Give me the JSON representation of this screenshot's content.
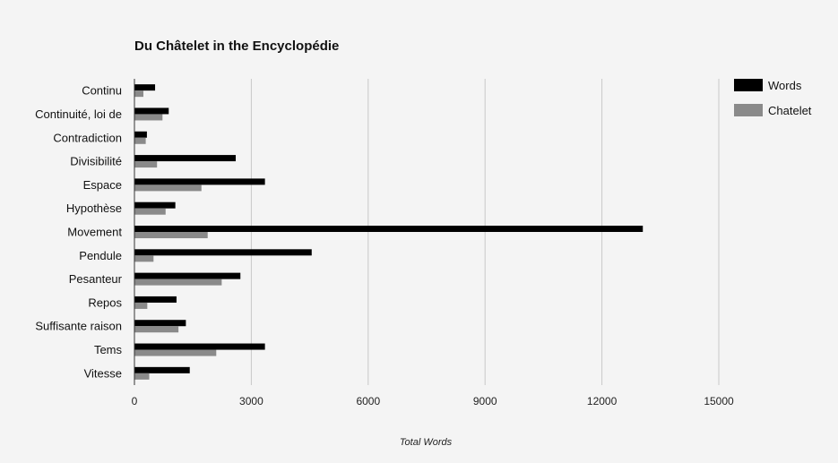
{
  "chart_data": {
    "type": "bar",
    "orientation": "horizontal",
    "title": "Du Châtelet in the Encyclopédie",
    "xlabel": "Total Words",
    "ylabel": "",
    "xlim": [
      0,
      15000
    ],
    "xticks": [
      0,
      3000,
      6000,
      9000,
      12000,
      15000
    ],
    "xtick_labels": [
      "0",
      "3000",
      "6000",
      "9000",
      "12000",
      "15000"
    ],
    "grid": true,
    "legend_position": "top-right",
    "categories": [
      "Continu",
      "Continuité, loi de",
      "Contradiction",
      "Divisibilité",
      "Espace",
      "Hypothèse",
      "Movement",
      "Pendule",
      "Pesanteur",
      "Repos",
      "Suffisante raison",
      "Tems",
      "Vitesse"
    ],
    "series": [
      {
        "name": "Words",
        "color": "#000000",
        "values": [
          530,
          880,
          320,
          2600,
          3350,
          1050,
          13050,
          4550,
          2720,
          1080,
          1320,
          3350,
          1420
        ]
      },
      {
        "name": "Chatelet",
        "color": "#8a8a8a",
        "values": [
          230,
          720,
          290,
          580,
          1720,
          800,
          1880,
          490,
          2240,
          330,
          1130,
          2100,
          380
        ]
      }
    ]
  }
}
